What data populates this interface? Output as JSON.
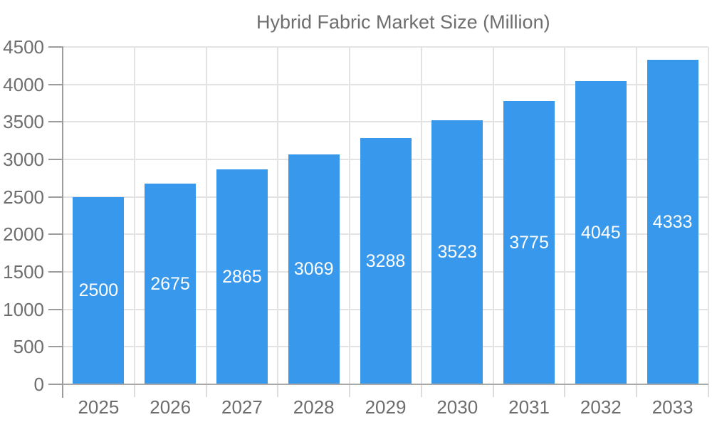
{
  "chart_data": {
    "type": "bar",
    "title": "",
    "legend_label": "Hybrid Fabric Market Size (Million)",
    "legend_position": "top",
    "categories": [
      "2025",
      "2026",
      "2027",
      "2028",
      "2029",
      "2030",
      "2031",
      "2032",
      "2033"
    ],
    "values": [
      2500,
      2675,
      2865,
      3069,
      3288,
      3523,
      3775,
      4045,
      4333
    ],
    "data_labels": "inside-center-white",
    "xlabel": "",
    "ylabel": "",
    "ylim": [
      0,
      4500
    ],
    "ytick_step": 500,
    "yticks": [
      0,
      500,
      1000,
      1500,
      2000,
      2500,
      3000,
      3500,
      4000,
      4500
    ],
    "grid": true,
    "colors": {
      "bar": "#3898ec",
      "grid": "#e3e3e3",
      "axis": "#9c9c9c",
      "tick_text": "#6e6e6e",
      "bar_label_text": "#ffffff",
      "background": "#ffffff"
    }
  }
}
